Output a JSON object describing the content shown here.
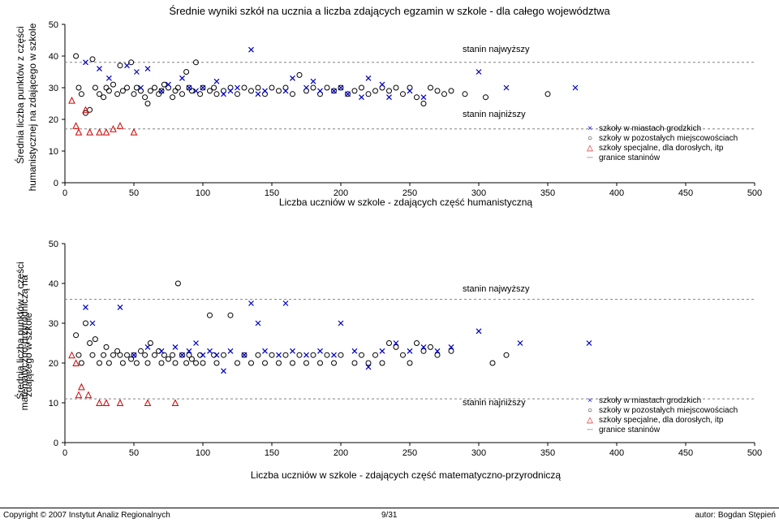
{
  "main_title": "Średnie wyniki szkół na ucznia a liczba zdających egzamin w szkole - dla całego województwa",
  "chart1": {
    "type": "scatter",
    "ylabel_line1": "Średnia liczba punktów z części",
    "ylabel_line2": "humanistycznej na zdającego w szkole",
    "xlabel": "Liczba uczniów w szkole - zdających część humanistyczną",
    "xlim": [
      0,
      500
    ],
    "ylim": [
      0,
      50
    ],
    "xtick_step": 50,
    "ytick_step": 10,
    "ann_high": "stanin najwyższy",
    "ann_low": "stanin najniższy",
    "stanin_high": 38,
    "stanin_low": 17,
    "colors": {
      "cross": "#0000c0",
      "circle": "#000000",
      "triangle": "#d00000"
    },
    "legend": [
      {
        "marker": "×",
        "color": "#0000c0",
        "label": "szkoły w miastach grodzkich"
      },
      {
        "marker": "○",
        "color": "#000000",
        "label": "szkoły w pozostałych miejscowościach"
      },
      {
        "marker": "△",
        "color": "#d00000",
        "label": "szkoły specjalne, dla dorosłych, itp"
      },
      {
        "marker": "─",
        "color": "#808080",
        "label": "granice staninów"
      }
    ],
    "cross": [
      [
        15,
        38
      ],
      [
        25,
        36
      ],
      [
        32,
        33
      ],
      [
        45,
        37
      ],
      [
        52,
        35
      ],
      [
        55,
        30
      ],
      [
        60,
        36
      ],
      [
        70,
        29
      ],
      [
        75,
        31
      ],
      [
        85,
        33
      ],
      [
        90,
        30
      ],
      [
        95,
        29
      ],
      [
        100,
        30
      ],
      [
        110,
        32
      ],
      [
        115,
        28
      ],
      [
        120,
        29
      ],
      [
        125,
        30
      ],
      [
        135,
        42
      ],
      [
        140,
        28
      ],
      [
        145,
        29
      ],
      [
        160,
        29
      ],
      [
        165,
        33
      ],
      [
        175,
        30
      ],
      [
        180,
        32
      ],
      [
        185,
        29
      ],
      [
        195,
        29
      ],
      [
        200,
        30
      ],
      [
        205,
        28
      ],
      [
        215,
        27
      ],
      [
        220,
        33
      ],
      [
        230,
        31
      ],
      [
        235,
        27
      ],
      [
        250,
        29
      ],
      [
        260,
        27
      ],
      [
        300,
        35
      ],
      [
        320,
        30
      ],
      [
        370,
        30
      ]
    ],
    "circle": [
      [
        8,
        40
      ],
      [
        10,
        30
      ],
      [
        12,
        28
      ],
      [
        15,
        22
      ],
      [
        18,
        23
      ],
      [
        20,
        39
      ],
      [
        22,
        30
      ],
      [
        25,
        28
      ],
      [
        28,
        27
      ],
      [
        30,
        30
      ],
      [
        32,
        29
      ],
      [
        35,
        31
      ],
      [
        38,
        28
      ],
      [
        40,
        37
      ],
      [
        42,
        29
      ],
      [
        45,
        30
      ],
      [
        48,
        38
      ],
      [
        50,
        28
      ],
      [
        52,
        30
      ],
      [
        55,
        29
      ],
      [
        58,
        27
      ],
      [
        60,
        25
      ],
      [
        62,
        29
      ],
      [
        65,
        30
      ],
      [
        68,
        28
      ],
      [
        70,
        29
      ],
      [
        72,
        31
      ],
      [
        75,
        30
      ],
      [
        78,
        27
      ],
      [
        80,
        29
      ],
      [
        82,
        30
      ],
      [
        85,
        28
      ],
      [
        88,
        35
      ],
      [
        90,
        30
      ],
      [
        92,
        29
      ],
      [
        95,
        38
      ],
      [
        98,
        28
      ],
      [
        100,
        30
      ],
      [
        105,
        29
      ],
      [
        108,
        30
      ],
      [
        110,
        28
      ],
      [
        115,
        29
      ],
      [
        120,
        30
      ],
      [
        125,
        28
      ],
      [
        130,
        30
      ],
      [
        135,
        29
      ],
      [
        140,
        30
      ],
      [
        145,
        28
      ],
      [
        150,
        30
      ],
      [
        155,
        29
      ],
      [
        160,
        30
      ],
      [
        165,
        28
      ],
      [
        170,
        34
      ],
      [
        175,
        29
      ],
      [
        180,
        30
      ],
      [
        185,
        28
      ],
      [
        190,
        30
      ],
      [
        195,
        29
      ],
      [
        200,
        30
      ],
      [
        205,
        28
      ],
      [
        210,
        29
      ],
      [
        215,
        30
      ],
      [
        220,
        28
      ],
      [
        225,
        29
      ],
      [
        230,
        30
      ],
      [
        235,
        29
      ],
      [
        240,
        30
      ],
      [
        245,
        28
      ],
      [
        250,
        30
      ],
      [
        255,
        27
      ],
      [
        260,
        25
      ],
      [
        265,
        30
      ],
      [
        270,
        29
      ],
      [
        275,
        28
      ],
      [
        280,
        29
      ],
      [
        290,
        28
      ],
      [
        305,
        27
      ],
      [
        350,
        28
      ]
    ],
    "triangle": [
      [
        5,
        26
      ],
      [
        8,
        18
      ],
      [
        10,
        16
      ],
      [
        15,
        23
      ],
      [
        25,
        16
      ],
      [
        18,
        16
      ],
      [
        30,
        16
      ],
      [
        35,
        17
      ],
      [
        40,
        18
      ],
      [
        50,
        16
      ]
    ]
  },
  "chart2": {
    "type": "scatter",
    "ylabel_line1": "Średnia liczba punktów z części",
    "ylabel_line2": "matematyczno-przyrodniczą na",
    "ylabel_line3": "zdającego w szkole",
    "xlabel": "Liczba uczniów w szkole - zdających część matematyczno-przyrodniczą",
    "xlim": [
      0,
      500
    ],
    "ylim": [
      0,
      50
    ],
    "xtick_step": 50,
    "ytick_step": 10,
    "ann_high": "stanin najwyższy",
    "ann_low": "stanin najniższy",
    "stanin_high": 36,
    "stanin_low": 11,
    "colors": {
      "cross": "#0000c0",
      "circle": "#000000",
      "triangle": "#d00000"
    },
    "legend": [
      {
        "marker": "×",
        "color": "#0000c0",
        "label": "szkoły w miastach grodzkich"
      },
      {
        "marker": "○",
        "color": "#000000",
        "label": "szkoły w pozostałych miejscowościach"
      },
      {
        "marker": "△",
        "color": "#d00000",
        "label": "szkoły specjalne, dla dorosłych, itp"
      },
      {
        "marker": "─",
        "color": "#808080",
        "label": "granice staninów"
      }
    ],
    "cross": [
      [
        15,
        34
      ],
      [
        20,
        30
      ],
      [
        40,
        34
      ],
      [
        50,
        22
      ],
      [
        60,
        24
      ],
      [
        70,
        23
      ],
      [
        80,
        24
      ],
      [
        85,
        22
      ],
      [
        90,
        23
      ],
      [
        95,
        25
      ],
      [
        100,
        22
      ],
      [
        105,
        23
      ],
      [
        110,
        22
      ],
      [
        115,
        18
      ],
      [
        120,
        23
      ],
      [
        130,
        22
      ],
      [
        135,
        35
      ],
      [
        140,
        30
      ],
      [
        145,
        23
      ],
      [
        155,
        22
      ],
      [
        160,
        35
      ],
      [
        165,
        23
      ],
      [
        175,
        22
      ],
      [
        185,
        23
      ],
      [
        195,
        22
      ],
      [
        200,
        30
      ],
      [
        210,
        23
      ],
      [
        220,
        19
      ],
      [
        230,
        23
      ],
      [
        240,
        25
      ],
      [
        250,
        23
      ],
      [
        260,
        24
      ],
      [
        270,
        23
      ],
      [
        280,
        24
      ],
      [
        300,
        28
      ],
      [
        330,
        25
      ],
      [
        380,
        25
      ]
    ],
    "circle": [
      [
        8,
        27
      ],
      [
        10,
        22
      ],
      [
        12,
        20
      ],
      [
        15,
        30
      ],
      [
        18,
        25
      ],
      [
        20,
        22
      ],
      [
        22,
        26
      ],
      [
        25,
        20
      ],
      [
        28,
        22
      ],
      [
        30,
        24
      ],
      [
        32,
        20
      ],
      [
        35,
        22
      ],
      [
        38,
        23
      ],
      [
        40,
        22
      ],
      [
        42,
        20
      ],
      [
        45,
        22
      ],
      [
        48,
        21
      ],
      [
        50,
        22
      ],
      [
        52,
        20
      ],
      [
        55,
        23
      ],
      [
        58,
        22
      ],
      [
        60,
        20
      ],
      [
        62,
        25
      ],
      [
        65,
        22
      ],
      [
        68,
        23
      ],
      [
        70,
        20
      ],
      [
        72,
        22
      ],
      [
        75,
        21
      ],
      [
        78,
        22
      ],
      [
        80,
        20
      ],
      [
        82,
        40
      ],
      [
        85,
        22
      ],
      [
        88,
        20
      ],
      [
        90,
        22
      ],
      [
        92,
        21
      ],
      [
        95,
        20
      ],
      [
        98,
        22
      ],
      [
        100,
        20
      ],
      [
        105,
        32
      ],
      [
        108,
        22
      ],
      [
        110,
        20
      ],
      [
        115,
        22
      ],
      [
        120,
        32
      ],
      [
        125,
        20
      ],
      [
        130,
        22
      ],
      [
        135,
        20
      ],
      [
        140,
        22
      ],
      [
        145,
        20
      ],
      [
        150,
        22
      ],
      [
        155,
        20
      ],
      [
        160,
        22
      ],
      [
        165,
        20
      ],
      [
        170,
        22
      ],
      [
        175,
        20
      ],
      [
        180,
        22
      ],
      [
        185,
        20
      ],
      [
        190,
        22
      ],
      [
        195,
        20
      ],
      [
        200,
        22
      ],
      [
        210,
        20
      ],
      [
        215,
        22
      ],
      [
        220,
        20
      ],
      [
        225,
        22
      ],
      [
        230,
        20
      ],
      [
        235,
        25
      ],
      [
        240,
        24
      ],
      [
        245,
        22
      ],
      [
        250,
        20
      ],
      [
        255,
        25
      ],
      [
        260,
        23
      ],
      [
        265,
        24
      ],
      [
        270,
        22
      ],
      [
        280,
        23
      ],
      [
        310,
        20
      ],
      [
        320,
        22
      ]
    ],
    "triangle": [
      [
        5,
        22
      ],
      [
        8,
        20
      ],
      [
        10,
        12
      ],
      [
        12,
        14
      ],
      [
        17,
        12
      ],
      [
        25,
        10
      ],
      [
        30,
        10
      ],
      [
        40,
        10
      ],
      [
        60,
        10
      ],
      [
        80,
        10
      ]
    ]
  },
  "footer": {
    "copyright": "Copyright © 2007 Instytut Analiz Regionalnych",
    "page": "9/31",
    "author": "autor: Bogdan Stępień"
  }
}
